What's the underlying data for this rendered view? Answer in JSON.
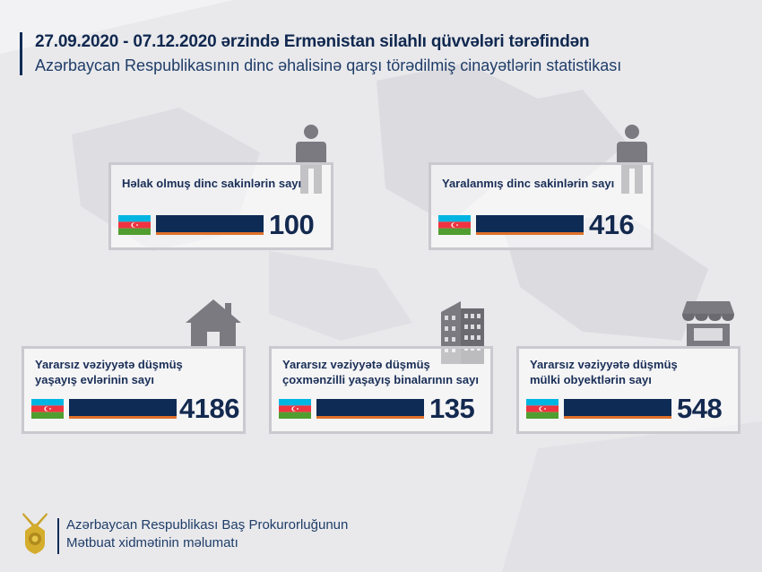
{
  "header": {
    "title": "27.09.2020 - 07.12.2020 ərzində Ermənistan silahlı qüvvələri tərəfindən",
    "subtitle": "Azərbaycan Respublikasının dinc əhalisinə qarşı törədilmiş cinayətlərin statistikası"
  },
  "cards": [
    {
      "label": "Həlak olmuş dinc sakinlərin sayı",
      "value": "100",
      "icon": "person-icon"
    },
    {
      "label": "Yaralanmış dinc sakinlərin sayı",
      "value": "416",
      "icon": "person-icon"
    },
    {
      "label_line1": "Yararsız vəziyyətə düşmüş",
      "label_line2": "yaşayış evlərinin sayı",
      "value": "4186",
      "icon": "house-icon"
    },
    {
      "label_line1": "Yararsız vəziyyətə düşmüş",
      "label_line2": "çoxmənzilli yaşayış binalarının sayı",
      "value": "135",
      "icon": "apartment-building-icon"
    },
    {
      "label_line1": "Yararsız vəziyyətə düşmüş",
      "label_line2": "mülki obyektlərin sayı",
      "value": "548",
      "icon": "shop-icon"
    }
  ],
  "footer": {
    "line1": "Azərbaycan Respublikası Baş Prokurorluğunun",
    "line2": "Mətbuat xidmətinin məlumatı",
    "logo": "prosecutor-emblem"
  },
  "colors": {
    "navy": "#0d2b55",
    "accent": "#e0712a",
    "flag_blue": "#00b5e2",
    "flag_red": "#ef3340",
    "flag_green": "#509e2f"
  }
}
